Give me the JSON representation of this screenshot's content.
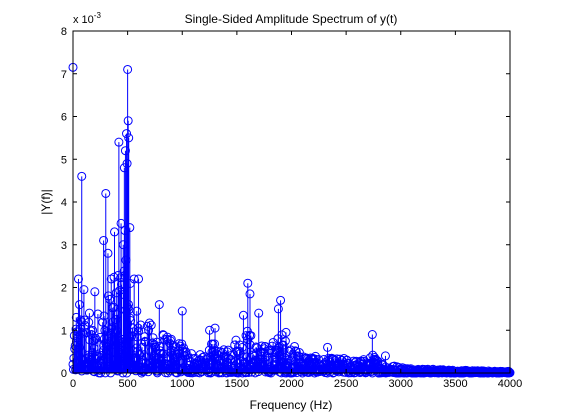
{
  "chart_data": {
    "type": "stem",
    "title": "Single-Sided Amplitude Spectrum of y(t)",
    "xlabel": "Frequency (Hz)",
    "ylabel": "|Y(f)|",
    "y_exponent_label": "x 10",
    "y_exponent_power": "-3",
    "xlim": [
      0,
      4000
    ],
    "ylim": [
      0,
      8
    ],
    "x_ticks": [
      "0",
      "500",
      "1000",
      "1500",
      "2000",
      "2500",
      "3000",
      "3500",
      "4000"
    ],
    "y_ticks": [
      "0",
      "1",
      "2",
      "3",
      "4",
      "5",
      "6",
      "7",
      "8"
    ],
    "grid": false,
    "legend": "none",
    "series_color": "#0000ff",
    "marker": "circle",
    "envelope": {
      "x": [
        0,
        20,
        50,
        80,
        120,
        160,
        200,
        250,
        300,
        350,
        400,
        450,
        480,
        500,
        530,
        560,
        600,
        650,
        700,
        750,
        800,
        850,
        900,
        950,
        1000,
        1050,
        1100,
        1150,
        1200,
        1250,
        1300,
        1350,
        1400,
        1450,
        1500,
        1550,
        1600,
        1650,
        1700,
        1750,
        1800,
        1850,
        1900,
        1950,
        2000,
        2050,
        2100,
        2200,
        2300,
        2400,
        2500,
        2600,
        2700,
        2750,
        2800,
        2900,
        3000,
        3100,
        3200,
        3400,
        3600,
        3800,
        4000
      ],
      "y": [
        0.4,
        1.2,
        1.4,
        1.6,
        1.3,
        1.2,
        1.4,
        1.6,
        1.8,
        2.1,
        2.4,
        3.0,
        3.4,
        3.2,
        2.2,
        1.7,
        1.4,
        1.3,
        1.2,
        1.1,
        1.1,
        0.9,
        0.8,
        0.7,
        0.8,
        0.6,
        0.5,
        0.45,
        0.4,
        0.7,
        0.7,
        0.5,
        0.6,
        0.8,
        0.9,
        0.9,
        1.1,
        0.8,
        0.7,
        0.65,
        0.7,
        0.8,
        1.0,
        0.8,
        0.7,
        0.6,
        0.5,
        0.4,
        0.35,
        0.35,
        0.35,
        0.3,
        0.35,
        0.45,
        0.3,
        0.2,
        0.15,
        0.12,
        0.1,
        0.08,
        0.06,
        0.05,
        0.04
      ]
    },
    "peaks": {
      "x": [
        0,
        30,
        50,
        60,
        80,
        100,
        150,
        200,
        280,
        300,
        320,
        350,
        380,
        420,
        440,
        460,
        470,
        480,
        490,
        495,
        500,
        505,
        510,
        520,
        560,
        600,
        790,
        1000,
        1250,
        1300,
        1560,
        1600,
        1620,
        1700,
        1880,
        1900,
        1950,
        2330,
        2740,
        2860
      ],
      "y": [
        7.15,
        1.3,
        2.2,
        1.6,
        4.6,
        1.95,
        1.4,
        1.9,
        3.1,
        4.2,
        2.8,
        2.2,
        3.3,
        5.4,
        3.5,
        3.0,
        4.8,
        5.2,
        5.6,
        4.9,
        7.1,
        5.9,
        5.5,
        3.4,
        2.2,
        2.2,
        1.6,
        1.45,
        1.0,
        1.05,
        1.35,
        2.1,
        1.85,
        1.4,
        1.5,
        1.7,
        0.95,
        0.6,
        0.9,
        0.4
      ]
    }
  }
}
